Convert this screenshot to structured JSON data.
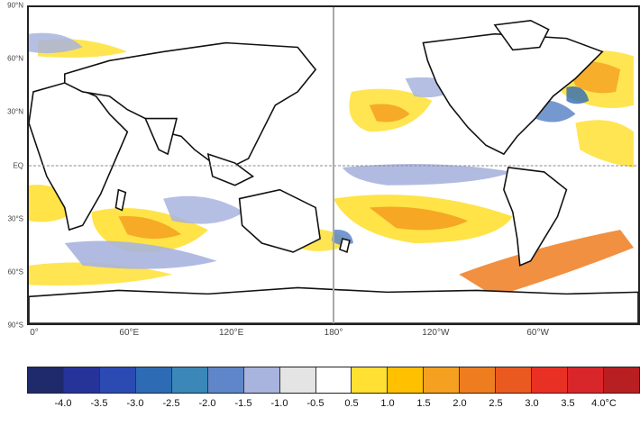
{
  "map": {
    "latitude_labels": [
      "90°N",
      "60°N",
      "30°N",
      "EQ",
      "30°S",
      "60°S",
      "90°S"
    ],
    "longitude_labels": [
      "0°",
      "60°E",
      "120°E",
      "180°",
      "120°W",
      "60°W"
    ]
  },
  "colorbar": {
    "colors": [
      "#1f2a6b",
      "#26349a",
      "#2b4bb3",
      "#2e6bb5",
      "#3a87b8",
      "#5e86c9",
      "#a8b4de",
      "#e4e4e4",
      "#ffffff",
      "#ffe033",
      "#ffc000",
      "#f5a020",
      "#ee7d20",
      "#ea5a20",
      "#e83025",
      "#d8262a",
      "#b81f22"
    ],
    "labels": [
      "-4.0",
      "-3.5",
      "-3.0",
      "-2.5",
      "-2.0",
      "-1.5",
      "-1.0",
      "-0.5",
      "0.5",
      "1.0",
      "1.5",
      "2.0",
      "2.5",
      "3.0",
      "3.5",
      "4.0°C"
    ]
  }
}
